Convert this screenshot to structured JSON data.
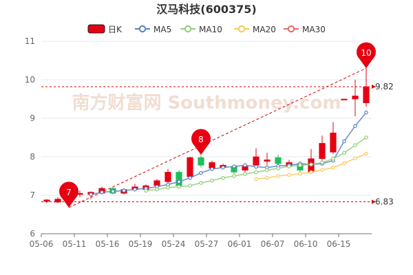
{
  "chart_data": {
    "type": "candlestick",
    "title": "汉马科技(600375)",
    "watermark": "南方财富网 Southmoney.com",
    "legend": [
      {
        "name": "日K",
        "color": "#e60012",
        "kind": "candle"
      },
      {
        "name": "MA5",
        "color": "#5b7fc0",
        "kind": "line"
      },
      {
        "name": "MA10",
        "color": "#91cc75",
        "kind": "line"
      },
      {
        "name": "MA20",
        "color": "#fac858",
        "kind": "line"
      },
      {
        "name": "MA30",
        "color": "#ee6666",
        "kind": "line"
      }
    ],
    "ylim": [
      6,
      11
    ],
    "yticks": [
      "6",
      "7",
      "8",
      "9",
      "10",
      "11"
    ],
    "xtick_labels": [
      {
        "index": 0,
        "label": "05-06"
      },
      {
        "index": 3,
        "label": "05-11"
      },
      {
        "index": 6,
        "label": "05-16"
      },
      {
        "index": 9,
        "label": "05-19"
      },
      {
        "index": 12,
        "label": "05-24"
      },
      {
        "index": 15,
        "label": "05-27"
      },
      {
        "index": 18,
        "label": "06-01"
      },
      {
        "index": 21,
        "label": "06-07"
      },
      {
        "index": 24,
        "label": "06-10"
      },
      {
        "index": 27,
        "label": "06-15"
      }
    ],
    "candles": [
      {
        "o": 6.84,
        "c": 6.88,
        "l": 6.8,
        "h": 6.9
      },
      {
        "o": 6.82,
        "c": 6.9,
        "l": 6.8,
        "h": 6.95
      },
      {
        "o": 7.0,
        "c": 6.95,
        "l": 6.68,
        "h": 7.05
      },
      {
        "o": 7.02,
        "c": 7.05,
        "l": 6.95,
        "h": 7.12
      },
      {
        "o": 7.02,
        "c": 7.08,
        "l": 6.9,
        "h": 7.1
      },
      {
        "o": 7.05,
        "c": 7.18,
        "l": 7.02,
        "h": 7.22
      },
      {
        "o": 7.18,
        "c": 7.05,
        "l": 7.02,
        "h": 7.2
      },
      {
        "o": 7.05,
        "c": 7.15,
        "l": 7.02,
        "h": 7.18
      },
      {
        "o": 7.15,
        "c": 7.22,
        "l": 7.12,
        "h": 7.3
      },
      {
        "o": 7.15,
        "c": 7.25,
        "l": 7.1,
        "h": 7.28
      },
      {
        "o": 7.25,
        "c": 7.38,
        "l": 7.2,
        "h": 7.42
      },
      {
        "o": 7.35,
        "c": 7.6,
        "l": 7.25,
        "h": 7.68
      },
      {
        "o": 7.6,
        "c": 7.25,
        "l": 7.2,
        "h": 7.65
      },
      {
        "o": 7.48,
        "c": 7.98,
        "l": 7.4,
        "h": 8.0
      },
      {
        "o": 7.98,
        "c": 7.78,
        "l": 7.72,
        "h": 8.05
      },
      {
        "o": 7.7,
        "c": 7.85,
        "l": 7.65,
        "h": 7.9
      },
      {
        "o": 7.72,
        "c": 7.78,
        "l": 7.68,
        "h": 7.82
      },
      {
        "o": 7.75,
        "c": 7.6,
        "l": 7.55,
        "h": 7.78
      },
      {
        "o": 7.65,
        "c": 7.75,
        "l": 7.6,
        "h": 7.8
      },
      {
        "o": 7.78,
        "c": 8.0,
        "l": 7.72,
        "h": 8.22
      },
      {
        "o": 7.88,
        "c": 7.92,
        "l": 7.78,
        "h": 8.1
      },
      {
        "o": 7.98,
        "c": 7.82,
        "l": 7.75,
        "h": 8.05
      },
      {
        "o": 7.75,
        "c": 7.85,
        "l": 7.7,
        "h": 7.92
      },
      {
        "o": 7.82,
        "c": 7.65,
        "l": 7.6,
        "h": 7.88
      },
      {
        "o": 7.6,
        "c": 7.95,
        "l": 7.55,
        "h": 8.2
      },
      {
        "o": 7.95,
        "c": 8.35,
        "l": 7.9,
        "h": 8.55
      },
      {
        "o": 8.12,
        "c": 8.62,
        "l": 8.08,
        "h": 8.9
      },
      {
        "o": 9.48,
        "c": 9.5,
        "l": 9.48,
        "h": 9.5
      },
      {
        "o": 9.5,
        "c": 9.58,
        "l": 9.05,
        "h": 10.0
      },
      {
        "o": 9.4,
        "c": 9.82,
        "l": 9.3,
        "h": 10.3
      }
    ],
    "ma": {
      "MA5": [
        null,
        null,
        null,
        null,
        7.02,
        7.08,
        7.1,
        7.12,
        7.15,
        7.18,
        7.22,
        7.28,
        7.35,
        7.45,
        7.58,
        7.68,
        7.72,
        7.75,
        7.78,
        7.74,
        7.72,
        7.76,
        7.78,
        7.82,
        7.8,
        7.82,
        7.9,
        8.4,
        8.8,
        9.15
      ],
      "MA10": [
        null,
        null,
        null,
        null,
        null,
        null,
        null,
        null,
        null,
        7.12,
        7.15,
        7.2,
        7.22,
        7.25,
        7.32,
        7.38,
        7.45,
        7.5,
        7.55,
        7.6,
        7.65,
        7.7,
        7.75,
        7.78,
        7.8,
        7.85,
        7.95,
        8.1,
        8.3,
        8.5
      ],
      "MA20": [
        null,
        null,
        null,
        null,
        null,
        null,
        null,
        null,
        null,
        null,
        null,
        null,
        null,
        null,
        null,
        null,
        null,
        null,
        null,
        7.42,
        7.45,
        7.5,
        7.53,
        7.56,
        7.6,
        7.66,
        7.72,
        7.83,
        7.96,
        8.08
      ],
      "MA30": []
    },
    "marklines": [
      {
        "label": "9.82",
        "value": 9.82
      },
      {
        "label": "6.83",
        "value": 6.83
      }
    ],
    "pins": [
      {
        "label": "7",
        "index": 2,
        "value": 6.68
      },
      {
        "label": "8",
        "index": 14,
        "value": 8.05
      },
      {
        "label": "10",
        "index": 29,
        "value": 10.3
      }
    ],
    "trendline": {
      "from": {
        "index": 2,
        "value": 6.68
      },
      "to": {
        "index": 29,
        "value": 10.3
      }
    },
    "colors": {
      "up": "#e60012",
      "down": "#1fbf5a",
      "grid": "#e6e9ee",
      "axis": "#6e7079",
      "markline": "#cc0000"
    }
  }
}
